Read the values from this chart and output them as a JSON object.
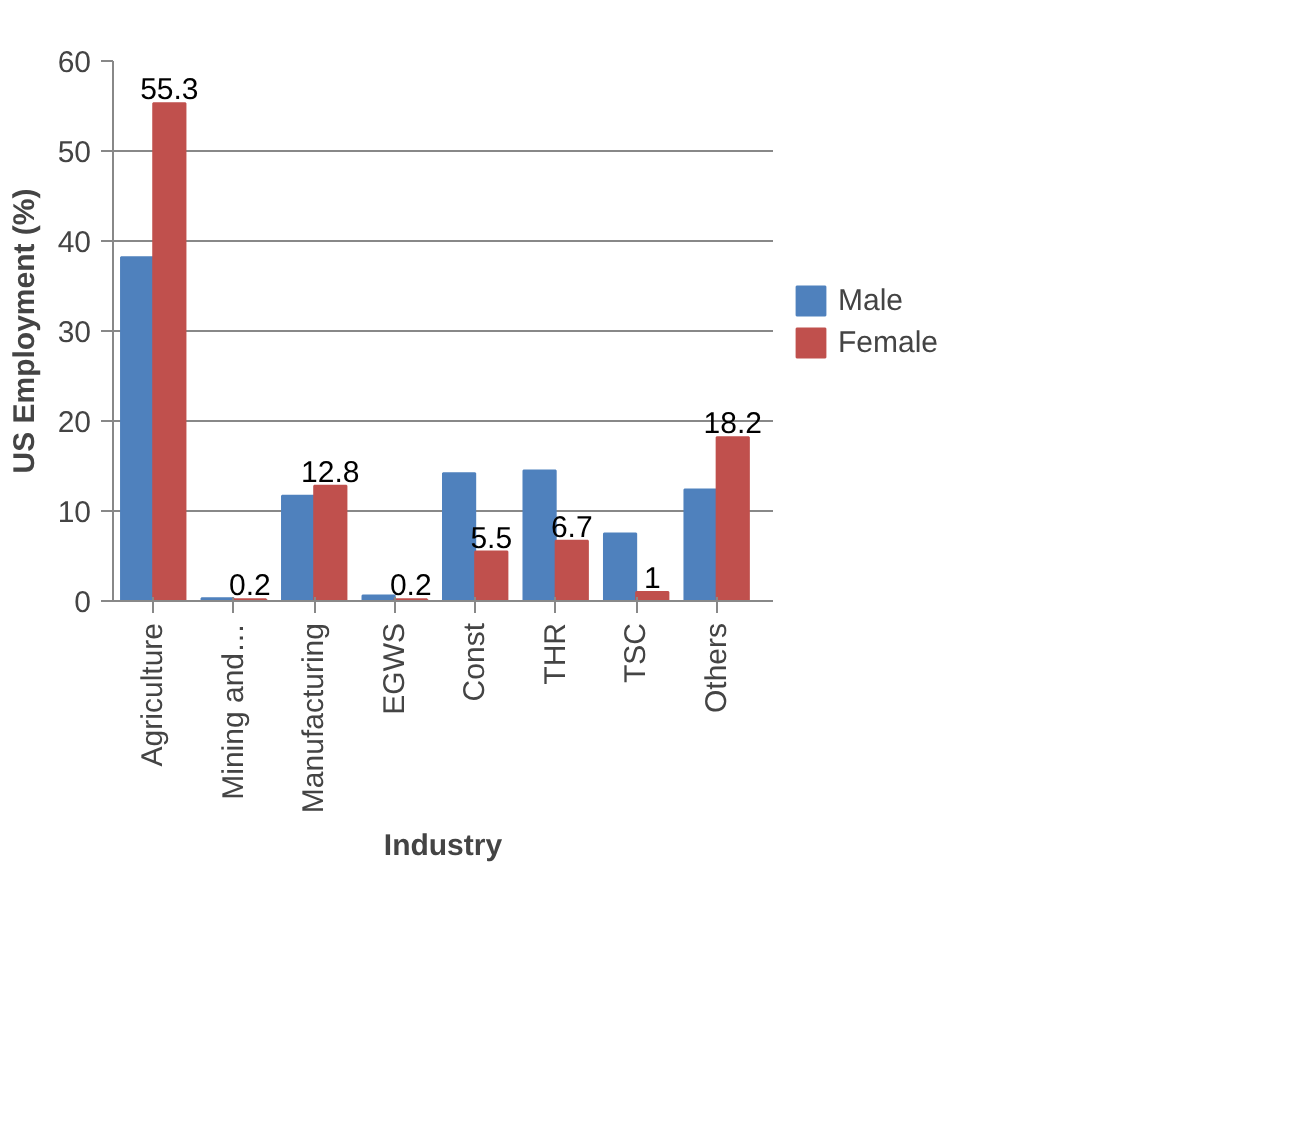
{
  "chart_data": {
    "type": "bar",
    "xlabel": "Industry",
    "ylabel": "US Employment (%)",
    "categories": [
      "Agriculture",
      "Mining and…",
      "Manufacturing",
      "EGWS",
      "Const",
      "THR",
      "TSC",
      "Others"
    ],
    "series": [
      {
        "name": "Male",
        "color": "#4f81bd",
        "values": [
          38.2,
          0.3,
          11.7,
          0.6,
          14.2,
          14.5,
          7.5,
          12.4
        ]
      },
      {
        "name": "Female",
        "color": "#c0504d",
        "values": [
          55.3,
          0.2,
          12.8,
          0.2,
          5.5,
          6.7,
          1,
          18.2
        ],
        "value_labels": [
          "55.3",
          "0.2",
          "12.8",
          "0.2",
          "5.5",
          "6.7",
          "1",
          "18.2"
        ]
      }
    ],
    "ylim": [
      0,
      60
    ],
    "yticks": [
      0,
      10,
      20,
      30,
      40,
      50,
      60
    ],
    "grid": "y",
    "legend": "right"
  }
}
